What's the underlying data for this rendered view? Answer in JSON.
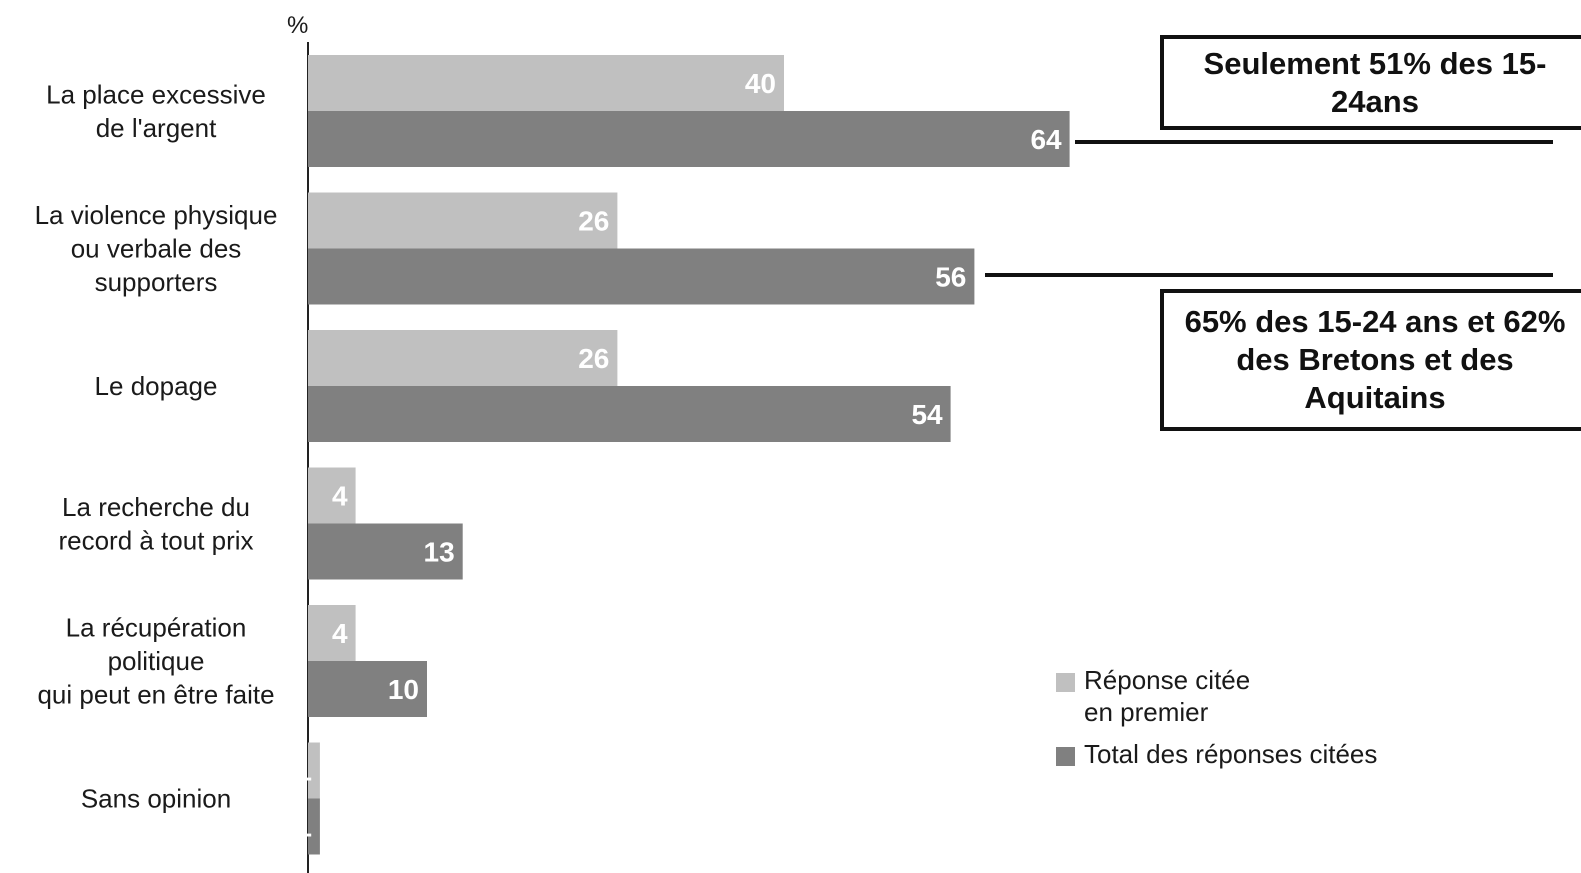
{
  "chart_data": {
    "type": "bar",
    "orientation": "horizontal",
    "unit_label": "%",
    "categories": [
      [
        "La place excessive",
        "de l'argent"
      ],
      [
        "La violence physique",
        "ou verbale des",
        "supporters"
      ],
      [
        "Le dopage"
      ],
      [
        "La recherche du",
        "record à tout prix"
      ],
      [
        "La récupération",
        "politique",
        "qui peut en être faite"
      ],
      [
        "Sans opinion"
      ]
    ],
    "series": [
      {
        "name": "Réponse citée en premier",
        "color": "#c0c0c0",
        "values": [
          40,
          26,
          26,
          4,
          4,
          1
        ]
      },
      {
        "name": "Total des réponses citées",
        "color": "#808080",
        "values": [
          64,
          56,
          54,
          13,
          10,
          1
        ]
      }
    ],
    "xlim": [
      0,
      100
    ],
    "grid": false,
    "legend_position": "bottom-right"
  },
  "callouts": [
    {
      "text": "Seulement 51% des 15-24ans",
      "points_to": "La place excessive de l'argent"
    },
    {
      "text": "65% des 15-24 ans et 62% des Bretons et des Aquitains",
      "points_to": "La violence physique ou verbale des supporters"
    }
  ],
  "legend": {
    "first": "Réponse citée en premier",
    "total": "Total des réponses citées"
  }
}
